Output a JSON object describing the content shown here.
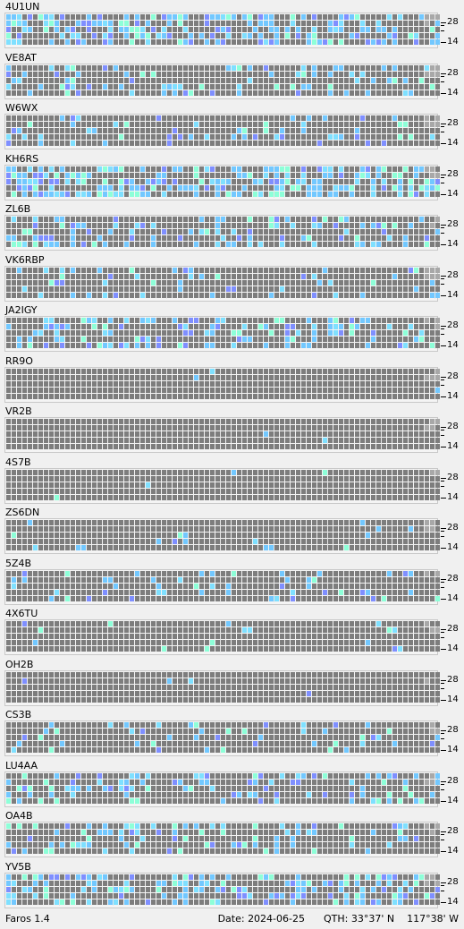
{
  "colors": {
    "background": "#f0f0f0",
    "cell_empty": "#7d7d7d",
    "cell_muted": "#a8a8a8",
    "cell_weak": "#7f8fff",
    "cell_mid": "#72c8ff",
    "cell_good": "#7fe0ff",
    "cell_strong": "#8dffd8"
  },
  "band_labels": {
    "top": "28",
    "bottom": "14"
  },
  "status": {
    "app": "Faros 1.4",
    "date_label": "Date:",
    "date": "2024-06-25",
    "qth_label": "QTH:",
    "lat": "33°37' N",
    "lon": "117°38' W"
  },
  "beacons": [
    {
      "call": "4U1UN"
    },
    {
      "call": "VE8AT"
    },
    {
      "call": "W6WX"
    },
    {
      "call": "KH6RS"
    },
    {
      "call": "ZL6B"
    },
    {
      "call": "VK6RBP"
    },
    {
      "call": "JA2IGY"
    },
    {
      "call": "RR9O"
    },
    {
      "call": "VR2B"
    },
    {
      "call": "4S7B"
    },
    {
      "call": "ZS6DN"
    },
    {
      "call": "5Z4B"
    },
    {
      "call": "4X6TU"
    },
    {
      "call": "OH2B"
    },
    {
      "call": "CS3B"
    },
    {
      "call": "LU4AA"
    },
    {
      "call": "OA4B"
    },
    {
      "call": "YV5B"
    }
  ]
}
